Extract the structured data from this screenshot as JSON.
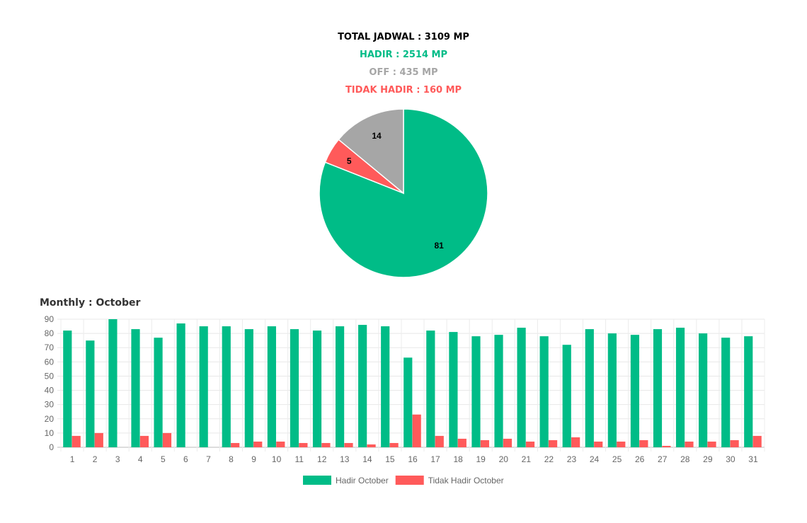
{
  "summary": {
    "total": "TOTAL JADWAL : 3109 MP",
    "hadir": "HADIR : 2514 MP",
    "off": "OFF : 435 MP",
    "tidak_hadir": "TIDAK HADIR : 160 MP"
  },
  "colors": {
    "hadir": "#00bc87",
    "off": "#a6a6a6",
    "tidak_hadir": "#ff5a5a"
  },
  "chart_data": [
    {
      "type": "pie",
      "slices": [
        {
          "name": "Hadir",
          "value": 81,
          "color": "#00bc87"
        },
        {
          "name": "Tidak Hadir",
          "value": 5,
          "color": "#ff5a5a"
        },
        {
          "name": "Off",
          "value": 14,
          "color": "#a6a6a6"
        }
      ]
    },
    {
      "type": "bar",
      "title": "Monthly : October",
      "categories": [
        "1",
        "2",
        "3",
        "4",
        "5",
        "6",
        "7",
        "8",
        "9",
        "10",
        "11",
        "12",
        "13",
        "14",
        "15",
        "16",
        "17",
        "18",
        "19",
        "20",
        "21",
        "22",
        "23",
        "24",
        "25",
        "26",
        "27",
        "28",
        "29",
        "30",
        "31"
      ],
      "series": [
        {
          "name": "Hadir October",
          "color": "#00bc87",
          "values": [
            82,
            75,
            90,
            83,
            77,
            87,
            85,
            85,
            83,
            85,
            83,
            82,
            85,
            86,
            85,
            63,
            82,
            81,
            78,
            79,
            84,
            78,
            72,
            83,
            80,
            79,
            83,
            84,
            80,
            77,
            78
          ]
        },
        {
          "name": "Tidak Hadir October",
          "color": "#ff5a5a",
          "values": [
            8,
            10,
            0,
            8,
            10,
            0,
            0,
            3,
            4,
            4,
            3,
            3,
            3,
            2,
            3,
            23,
            8,
            6,
            5,
            6,
            4,
            5,
            7,
            4,
            4,
            5,
            1,
            4,
            4,
            5,
            8
          ]
        }
      ],
      "ylim": [
        0,
        90
      ],
      "yticks": [
        "0",
        "10",
        "20",
        "30",
        "40",
        "50",
        "60",
        "70",
        "80",
        "90"
      ],
      "grid": true,
      "legend": "bottom"
    }
  ]
}
